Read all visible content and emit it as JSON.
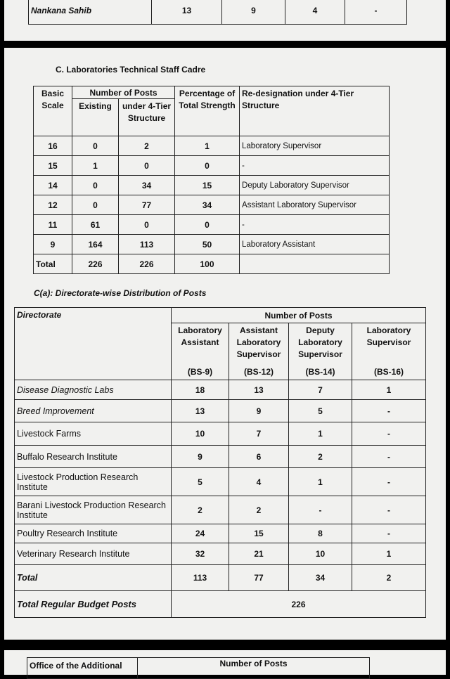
{
  "top_fragment": {
    "row": [
      "Nankana Sahib",
      "13",
      "9",
      "4",
      "-"
    ]
  },
  "section_c": {
    "title": "C.  Laboratories Technical Staff Cadre",
    "headers": {
      "basic_scale": "Basic Scale",
      "number_of_posts": "Number of Posts",
      "existing": "Existing",
      "under_4tier": "under 4-Tier Structure",
      "percentage": "Percentage of Total Strength",
      "redesignation": "Re-designation under 4-Tier Structure"
    },
    "rows": [
      [
        "16",
        "0",
        "2",
        "1",
        "Laboratory Supervisor"
      ],
      [
        "15",
        "1",
        "0",
        "0",
        "-"
      ],
      [
        "14",
        "0",
        "34",
        "15",
        "Deputy Laboratory Supervisor"
      ],
      [
        "12",
        "0",
        "77",
        "34",
        "Assistant Laboratory Supervisor"
      ],
      [
        "11",
        "61",
        "0",
        "0",
        "-"
      ],
      [
        "9",
        "164",
        "113",
        "50",
        "Laboratory Assistant"
      ],
      [
        "Total",
        "226",
        "226",
        "100",
        ""
      ]
    ]
  },
  "section_ca": {
    "title": "C(a): Directorate-wise Distribution of Posts",
    "headers": {
      "directorate": "Directorate",
      "number_of_posts": "Number of Posts",
      "cols": [
        {
          "name": "Laboratory Assistant",
          "scale": "(BS-9)"
        },
        {
          "name": "Assistant Laboratory Supervisor",
          "scale": "(BS-12)"
        },
        {
          "name": "Deputy Laboratory Supervisor",
          "scale": "(BS-14)"
        },
        {
          "name": "Laboratory Supervisor",
          "scale": "(BS-16)"
        }
      ]
    },
    "rows": [
      [
        "Disease Diagnostic Labs",
        "18",
        "13",
        "7",
        "1"
      ],
      [
        "Breed Improvement",
        "13",
        "9",
        "5",
        "-"
      ],
      [
        "Livestock Farms",
        "10",
        "7",
        "1",
        "-"
      ],
      [
        "Buffalo Research Institute",
        "9",
        "6",
        "2",
        "-"
      ],
      [
        "Livestock Production Research Institute",
        "5",
        "4",
        "1",
        "-"
      ],
      [
        "Barani Livestock Production Research Institute",
        "2",
        "2",
        "-",
        "-"
      ],
      [
        "Poultry Research Institute",
        "24",
        "15",
        "8",
        "-"
      ],
      [
        "Veterinary Research Institute",
        "32",
        "21",
        "10",
        "1"
      ],
      [
        "Total",
        "113",
        "77",
        "34",
        "2"
      ]
    ],
    "grand_total": {
      "label": "Total Regular Budget Posts",
      "value": "226"
    }
  },
  "bottom_fragment": {
    "col1": "Office of the Additional",
    "col2": "Number of Posts"
  }
}
